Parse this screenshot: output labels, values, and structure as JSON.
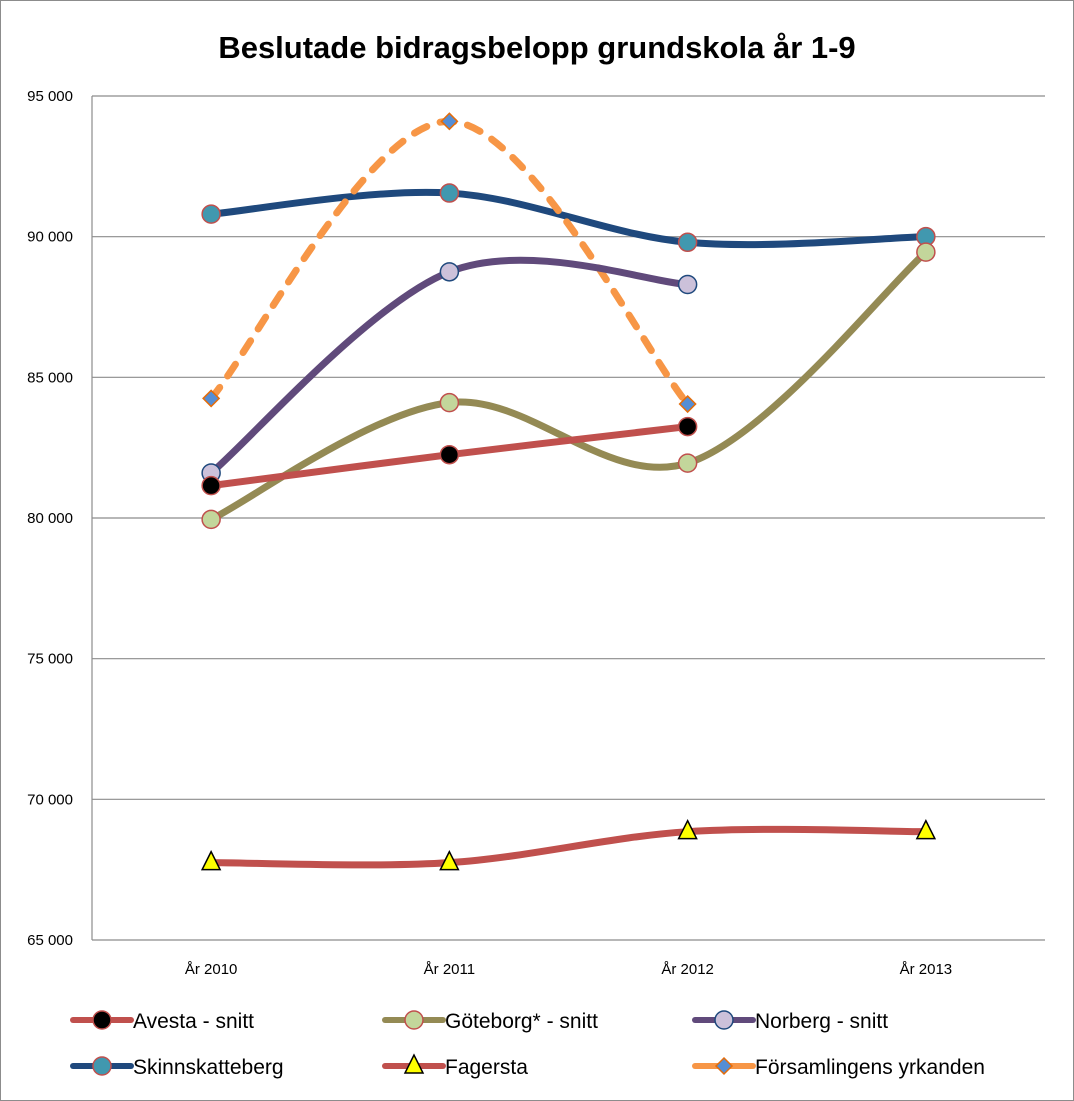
{
  "chart_data": {
    "type": "line",
    "title": "Beslutade bidragsbelopp grundskola år 1-9",
    "xlabel": "",
    "ylabel": "",
    "categories": [
      "År 2010",
      "År 2011",
      "År 2012",
      "År 2013"
    ],
    "ylim": [
      65000,
      95000
    ],
    "yticks": [
      65000,
      70000,
      75000,
      80000,
      85000,
      90000,
      95000
    ],
    "ytick_labels": [
      "65 000",
      "70 000",
      "75 000",
      "80 000",
      "85 000",
      "90 000",
      "95 000"
    ],
    "grid": true,
    "legend_position": "bottom",
    "smooth": true,
    "series": [
      {
        "name": "Avesta - snitt",
        "color": "#c0504d",
        "marker": "circle",
        "marker_fill": "#000000",
        "marker_stroke": "#c0504d",
        "dashed": false,
        "values": [
          81150,
          82250,
          83250,
          null
        ]
      },
      {
        "name": "Göteborg* - snitt",
        "color": "#948a54",
        "marker": "circle",
        "marker_fill": "#c3d69b",
        "marker_stroke": "#c0504d",
        "dashed": false,
        "values": [
          79950,
          84100,
          81950,
          89450
        ]
      },
      {
        "name": "Norberg - snitt",
        "color": "#604a7b",
        "marker": "circle",
        "marker_fill": "#ccc1da",
        "marker_stroke": "#1f497d",
        "dashed": false,
        "values": [
          81600,
          88750,
          88300,
          null
        ]
      },
      {
        "name": "Skinnskatteberg",
        "color": "#1f497d",
        "marker": "circle",
        "marker_fill": "#4198af",
        "marker_stroke": "#c0504d",
        "dashed": false,
        "values": [
          90800,
          91550,
          89800,
          90000
        ]
      },
      {
        "name": "Fagersta",
        "color": "#c0504d",
        "marker": "triangle",
        "marker_fill": "#ffff00",
        "marker_stroke": "#000000",
        "dashed": false,
        "values": [
          67750,
          67750,
          68850,
          68850
        ]
      },
      {
        "name": "Församlingens yrkanden",
        "color": "#f79646",
        "marker": "diamond",
        "marker_fill": "#558ed5",
        "marker_stroke": "#e46c0a",
        "dashed": true,
        "values": [
          84250,
          94100,
          84050,
          null
        ]
      }
    ]
  }
}
